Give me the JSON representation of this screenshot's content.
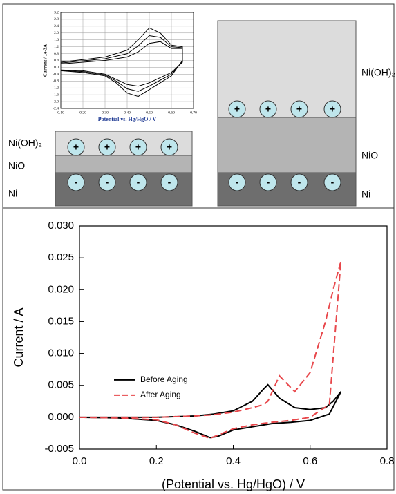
{
  "chart_data": [
    {
      "type": "line",
      "y_label": "Current / 1e-3A",
      "x_label": "Potential vs. Hg/HgO  /  V",
      "x": [
        0.1,
        0.2,
        0.3,
        0.4,
        0.45,
        0.5,
        0.55,
        0.6,
        0.65,
        0.65,
        0.6,
        0.55,
        0.5,
        0.45,
        0.4,
        0.35,
        0.3,
        0.2,
        0.1
      ],
      "series": [
        {
          "color": "#000000",
          "values": [
            0.3,
            0.45,
            0.6,
            1.0,
            1.6,
            2.3,
            2.0,
            1.3,
            1.2,
            0.4,
            -0.5,
            -0.9,
            -1.3,
            -1.7,
            -1.5,
            -0.9,
            -0.5,
            -0.3,
            -0.2
          ]
        },
        {
          "color": "#000000",
          "values": [
            0.25,
            0.38,
            0.5,
            0.8,
            1.25,
            1.85,
            1.75,
            1.2,
            1.15,
            0.35,
            -0.4,
            -0.75,
            -1.1,
            -1.4,
            -1.25,
            -0.8,
            -0.45,
            -0.25,
            -0.18
          ]
        },
        {
          "color": "#000000",
          "values": [
            0.2,
            0.3,
            0.4,
            0.6,
            0.9,
            1.4,
            1.5,
            1.1,
            1.1,
            0.3,
            -0.3,
            -0.6,
            -0.9,
            -1.1,
            -1.0,
            -0.7,
            -0.4,
            -0.2,
            -0.15
          ]
        }
      ],
      "xlim": [
        0.1,
        0.7
      ],
      "xticks": [
        {
          "value": 0.1,
          "label": "0.10"
        },
        {
          "value": 0.2,
          "label": "0.20"
        },
        {
          "value": 0.3,
          "label": "0.30"
        },
        {
          "value": 0.4,
          "label": "0.40"
        },
        {
          "value": 0.5,
          "label": "0.50"
        },
        {
          "value": 0.6,
          "label": "0.60"
        },
        {
          "value": 0.7,
          "label": "0.70"
        }
      ],
      "ylim": [
        -2.4,
        3.2
      ],
      "yticks": [
        3.2,
        2.8,
        2.4,
        {
          "value": 2.0,
          "label": "2.0"
        },
        1.6,
        1.2,
        0.8,
        0.4,
        {
          "value": 0,
          "label": "0.0"
        },
        -0.4,
        -0.8,
        -1.2,
        -1.6,
        {
          "value": -2.0,
          "label": "-2.0"
        },
        -2.4
      ],
      "grid": true
    },
    {
      "type": "line",
      "y_label": "Current / A",
      "x_label": "(Potential vs. Hg/HgO) / V",
      "x": [
        0,
        0.1,
        0.2,
        0.3,
        0.35,
        0.4,
        0.45,
        0.48,
        0.49,
        0.52,
        0.56,
        0.6,
        0.64,
        0.66,
        0.68,
        0.65,
        0.6,
        0.55,
        0.5,
        0.45,
        0.4,
        0.36,
        0.34,
        0.3,
        0.25,
        0.2,
        0.1,
        0
      ],
      "series": [
        {
          "name": "Before Aging",
          "color": "#000000",
          "dash": false,
          "values": [
            0,
            0,
            0,
            0.0002,
            0.0005,
            0.001,
            0.0025,
            0.0045,
            0.0051,
            0.003,
            0.0015,
            0.0012,
            0.0015,
            0.0025,
            0.004,
            0.0005,
            -0.0005,
            -0.0008,
            -0.001,
            -0.0015,
            -0.002,
            -0.003,
            -0.0032,
            -0.0022,
            -0.0012,
            -0.0005,
            -0.0001,
            0
          ]
        },
        {
          "name": "After Aging",
          "color": "#e8474b",
          "dash": true,
          "values": [
            0,
            0,
            0,
            0.0002,
            0.0004,
            0.0008,
            0.0015,
            0.002,
            0.0025,
            0.0065,
            0.004,
            0.007,
            0.015,
            0.02,
            0.0245,
            0.002,
            0,
            -0.0005,
            -0.0008,
            -0.0012,
            -0.0018,
            -0.0028,
            -0.0033,
            -0.0025,
            -0.0012,
            -0.0004,
            -0.0001,
            0
          ]
        }
      ],
      "xlim": [
        0,
        0.8
      ],
      "xticks": [
        {
          "value": 0,
          "label": "0.0"
        },
        0.2,
        0.4,
        0.6,
        0.8
      ],
      "ylim": [
        -0.005,
        0.03
      ],
      "yticks": [
        {
          "value": 0.03,
          "label": "0.030"
        },
        0.025,
        {
          "value": 0.02,
          "label": "0.020"
        },
        0.015,
        {
          "value": 0.01,
          "label": "0.010"
        },
        0.005,
        {
          "value": 0,
          "label": "0.000"
        },
        -0.005
      ],
      "grid": false,
      "legend": "center-left"
    }
  ],
  "diagram": {
    "left": {
      "labels": [
        "Ni(OH)₂",
        "NiO",
        "Ni"
      ],
      "top_signs": [
        "+",
        "+",
        "+",
        "+"
      ],
      "bottom_signs": [
        "-",
        "-",
        "-",
        "-"
      ]
    },
    "right": {
      "labels": [
        "Ni(OH)₂",
        "NiO",
        "Ni"
      ],
      "top_signs": [
        "+",
        "+",
        "+",
        "+"
      ],
      "bottom_signs": [
        "-",
        "-",
        "-",
        "-"
      ]
    }
  }
}
